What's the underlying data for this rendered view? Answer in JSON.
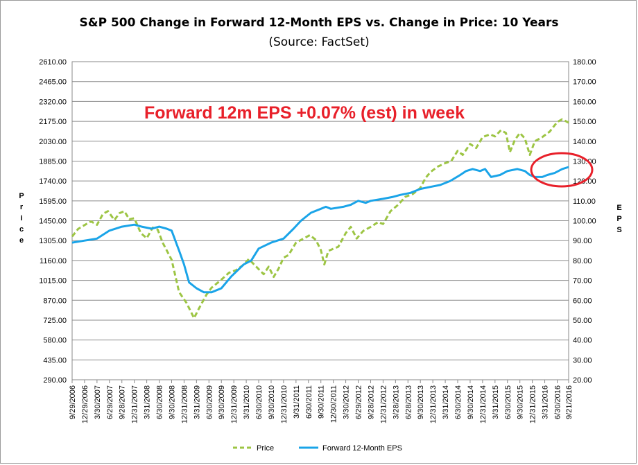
{
  "chart_data": {
    "type": "line",
    "title": "S&P 500 Change in Forward 12-Month EPS vs. Change in Price: 10 Years",
    "subtitle": "(Source: FactSet)",
    "annotation": "Forward 12m EPS +0.07% (est) in week",
    "ylabel_left": "Price",
    "ylabel_right": "EPS",
    "ylim_left": [
      290,
      2610
    ],
    "ylim_right": [
      20,
      180
    ],
    "yticks_left": [
      "2610.00",
      "2465.00",
      "2320.00",
      "2175.00",
      "2030.00",
      "1885.00",
      "1740.00",
      "1595.00",
      "1450.00",
      "1305.00",
      "1160.00",
      "1015.00",
      "870.00",
      "725.00",
      "580.00",
      "435.00",
      "290.00"
    ],
    "yticks_right": [
      "180.00",
      "170.00",
      "160.00",
      "150.00",
      "140.00",
      "130.00",
      "120.00",
      "110.00",
      "100.00",
      "90.00",
      "80.00",
      "70.00",
      "60.00",
      "50.00",
      "40.00",
      "30.00",
      "20.00"
    ],
    "categories": [
      "9/29/2006",
      "12/29/2006",
      "3/30/2007",
      "6/29/2007",
      "9/28/2007",
      "12/31/2007",
      "3/31/2008",
      "6/30/2008",
      "9/30/2008",
      "12/31/2008",
      "3/31/2009",
      "6/30/2009",
      "9/30/2009",
      "12/31/2009",
      "3/31/2010",
      "6/30/2010",
      "9/30/2010",
      "12/31/2010",
      "3/31/2011",
      "6/30/2011",
      "9/30/2011",
      "12/30/2011",
      "3/30/2012",
      "6/29/2012",
      "9/28/2012",
      "12/31/2012",
      "3/28/2013",
      "6/28/2013",
      "9/30/2013",
      "12/31/2013",
      "3/31/2014",
      "6/30/2014",
      "9/30/2014",
      "12/31/2014",
      "3/31/2015",
      "6/30/2015",
      "9/30/2015",
      "12/31/2015",
      "3/31/2016",
      "6/30/2016",
      "9/21/2016"
    ],
    "x": [
      0,
      0.25,
      0.5,
      0.75,
      1,
      1.25,
      1.5,
      1.75,
      2,
      2.25,
      2.5,
      2.75,
      3,
      3.25,
      3.5,
      3.75,
      4,
      4.25,
      4.5,
      4.75,
      5,
      5.25,
      5.5,
      5.75,
      6,
      6.25,
      6.5,
      6.75,
      7,
      7.25,
      7.5,
      7.75,
      8,
      8.25,
      8.5,
      8.75,
      9,
      9.25,
      9.5,
      9.75,
      9.98
    ],
    "series": [
      {
        "name": "Price",
        "axis": "left",
        "color": "#9dc544",
        "style": "dashed",
        "points": [
          [
            0,
            1335
          ],
          [
            0.12,
            1390
          ],
          [
            0.25,
            1418
          ],
          [
            0.38,
            1445
          ],
          [
            0.5,
            1420
          ],
          [
            0.62,
            1500
          ],
          [
            0.72,
            1520
          ],
          [
            0.85,
            1455
          ],
          [
            0.95,
            1505
          ],
          [
            1.05,
            1520
          ],
          [
            1.15,
            1460
          ],
          [
            1.25,
            1468
          ],
          [
            1.38,
            1360
          ],
          [
            1.5,
            1322
          ],
          [
            1.62,
            1400
          ],
          [
            1.72,
            1385
          ],
          [
            1.82,
            1290
          ],
          [
            2.0,
            1165
          ],
          [
            2.15,
            930
          ],
          [
            2.3,
            850
          ],
          [
            2.45,
            740
          ],
          [
            2.55,
            810
          ],
          [
            2.7,
            910
          ],
          [
            2.8,
            960
          ],
          [
            3.0,
            1020
          ],
          [
            3.15,
            1070
          ],
          [
            3.3,
            1090
          ],
          [
            3.45,
            1130
          ],
          [
            3.55,
            1170
          ],
          [
            3.7,
            1115
          ],
          [
            3.85,
            1060
          ],
          [
            3.95,
            1115
          ],
          [
            4.05,
            1040
          ],
          [
            4.15,
            1100
          ],
          [
            4.25,
            1180
          ],
          [
            4.35,
            1200
          ],
          [
            4.5,
            1290
          ],
          [
            4.65,
            1320
          ],
          [
            4.78,
            1345
          ],
          [
            4.9,
            1310
          ],
          [
            5.0,
            1235
          ],
          [
            5.07,
            1131
          ],
          [
            5.15,
            1230
          ],
          [
            5.35,
            1260
          ],
          [
            5.5,
            1360
          ],
          [
            5.6,
            1405
          ],
          [
            5.72,
            1320
          ],
          [
            5.85,
            1375
          ],
          [
            6.0,
            1405
          ],
          [
            6.15,
            1440
          ],
          [
            6.25,
            1426
          ],
          [
            6.4,
            1520
          ],
          [
            6.55,
            1565
          ],
          [
            6.7,
            1625
          ],
          [
            6.85,
            1645
          ],
          [
            7.0,
            1690
          ],
          [
            7.1,
            1760
          ],
          [
            7.2,
            1805
          ],
          [
            7.35,
            1845
          ],
          [
            7.5,
            1870
          ],
          [
            7.62,
            1885
          ],
          [
            7.75,
            1960
          ],
          [
            7.85,
            1930
          ],
          [
            8.0,
            2010
          ],
          [
            8.12,
            1980
          ],
          [
            8.25,
            2060
          ],
          [
            8.4,
            2080
          ],
          [
            8.5,
            2065
          ],
          [
            8.62,
            2110
          ],
          [
            8.72,
            2090
          ],
          [
            8.8,
            1950
          ],
          [
            8.9,
            2040
          ],
          [
            9.0,
            2090
          ],
          [
            9.1,
            2050
          ],
          [
            9.2,
            1930
          ],
          [
            9.3,
            2030
          ],
          [
            9.45,
            2060
          ],
          [
            9.6,
            2100
          ],
          [
            9.75,
            2170
          ],
          [
            9.85,
            2190
          ],
          [
            9.98,
            2165
          ]
        ]
      },
      {
        "name": "Forward 12-Month EPS",
        "axis": "right",
        "color": "#1aa4e8",
        "style": "solid",
        "points": [
          [
            0,
            89
          ],
          [
            0.25,
            90
          ],
          [
            0.5,
            91
          ],
          [
            0.75,
            95
          ],
          [
            1.0,
            97
          ],
          [
            1.25,
            98
          ],
          [
            1.4,
            97
          ],
          [
            1.6,
            96
          ],
          [
            1.75,
            97
          ],
          [
            1.9,
            96
          ],
          [
            2.0,
            95
          ],
          [
            2.15,
            85
          ],
          [
            2.25,
            78
          ],
          [
            2.35,
            69
          ],
          [
            2.5,
            66
          ],
          [
            2.65,
            64
          ],
          [
            2.8,
            64
          ],
          [
            3.0,
            66
          ],
          [
            3.2,
            72
          ],
          [
            3.45,
            78
          ],
          [
            3.6,
            80
          ],
          [
            3.75,
            86
          ],
          [
            4.0,
            89
          ],
          [
            4.25,
            91
          ],
          [
            4.45,
            96
          ],
          [
            4.6,
            100
          ],
          [
            4.8,
            104
          ],
          [
            5.0,
            106
          ],
          [
            5.1,
            107
          ],
          [
            5.2,
            106
          ],
          [
            5.45,
            107
          ],
          [
            5.6,
            108
          ],
          [
            5.75,
            110
          ],
          [
            5.9,
            109
          ],
          [
            6.0,
            110
          ],
          [
            6.25,
            111
          ],
          [
            6.45,
            112
          ],
          [
            6.6,
            113
          ],
          [
            6.8,
            114
          ],
          [
            7.0,
            116
          ],
          [
            7.2,
            117
          ],
          [
            7.4,
            118
          ],
          [
            7.6,
            120
          ],
          [
            7.8,
            123
          ],
          [
            7.92,
            125
          ],
          [
            8.05,
            126
          ],
          [
            8.2,
            125
          ],
          [
            8.3,
            126
          ],
          [
            8.42,
            122
          ],
          [
            8.6,
            123
          ],
          [
            8.75,
            125
          ],
          [
            8.95,
            126
          ],
          [
            9.1,
            125
          ],
          [
            9.2,
            123
          ],
          [
            9.3,
            122
          ],
          [
            9.45,
            122
          ],
          [
            9.55,
            123
          ],
          [
            9.7,
            124
          ],
          [
            9.85,
            126
          ],
          [
            9.98,
            127
          ]
        ]
      }
    ],
    "legend_position": "bottom",
    "grid": true
  },
  "legend": {
    "price": "Price",
    "eps": "Forward 12-Month EPS"
  }
}
